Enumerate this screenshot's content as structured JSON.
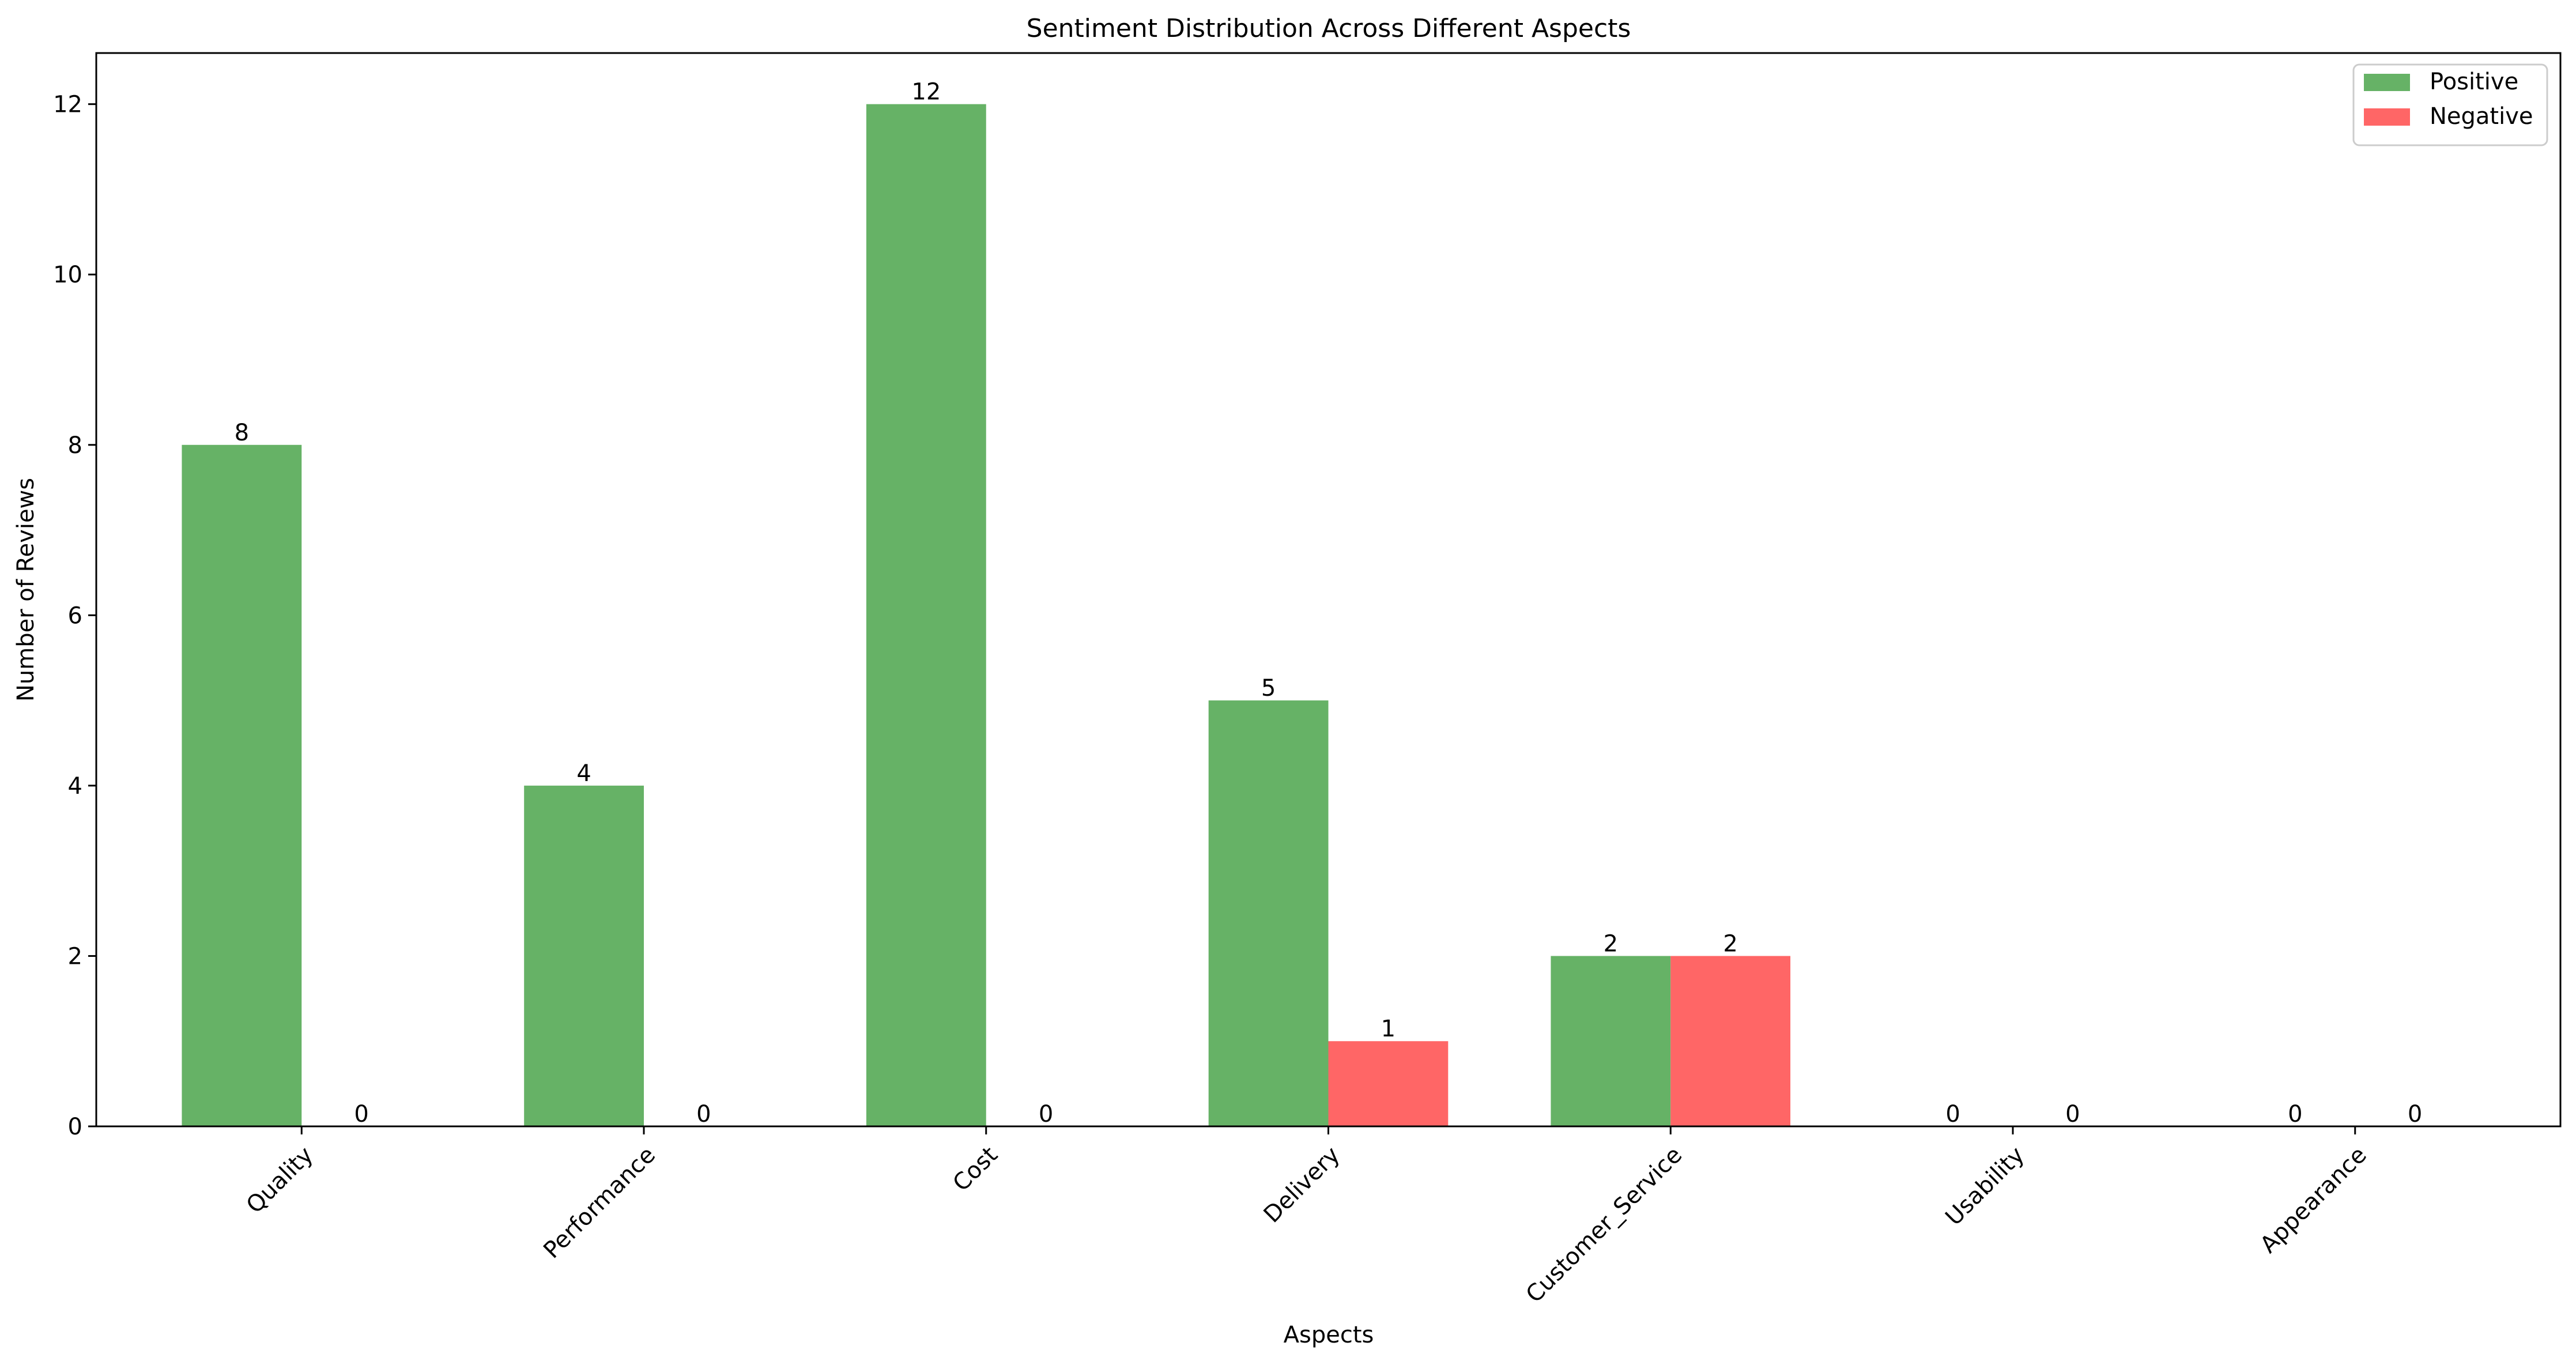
{
  "chart_data": {
    "type": "bar",
    "title": "Sentiment Distribution Across Different Aspects",
    "xlabel": "Aspects",
    "ylabel": "Number of Reviews",
    "categories": [
      "Quality",
      "Performance",
      "Cost",
      "Delivery",
      "Customer_Service",
      "Usability",
      "Appearance"
    ],
    "series": [
      {
        "name": "Positive",
        "values": [
          8,
          4,
          12,
          5,
          2,
          0,
          0
        ],
        "color": "#66b266"
      },
      {
        "name": "Negative",
        "values": [
          0,
          0,
          0,
          1,
          2,
          0,
          0
        ],
        "color": "#ff6666"
      }
    ],
    "yticks": [
      0,
      2,
      4,
      6,
      8,
      10,
      12
    ],
    "ylim": [
      0,
      12.6
    ],
    "grid": false,
    "legend_position": "top-right",
    "data_labels": true,
    "xtick_rotation": 45
  }
}
